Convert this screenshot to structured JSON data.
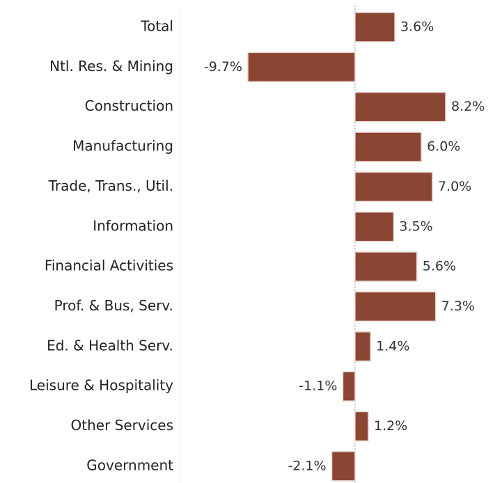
{
  "chart_data": {
    "type": "bar",
    "orientation": "horizontal",
    "categories": [
      "Total",
      "Ntl. Res. & Mining",
      "Construction",
      "Manufacturing",
      "Trade, Trans., Util.",
      "Information",
      "Financial Activities",
      "Prof. & Bus, Serv.",
      "Ed. & Health Serv.",
      "Leisure & Hospitality",
      "Other Services",
      "Government"
    ],
    "values": [
      3.6,
      -9.7,
      8.2,
      6.0,
      7.0,
      3.5,
      5.6,
      7.3,
      1.4,
      -1.1,
      1.2,
      -2.1
    ],
    "value_labels": [
      "3.6%",
      "-9.7%",
      "8.2%",
      "6.0%",
      "7.0%",
      "3.5%",
      "5.6%",
      "7.3%",
      "1.4%",
      "-1.1%",
      "1.2%",
      "-2.1%"
    ],
    "color": "#8b4533"
  }
}
